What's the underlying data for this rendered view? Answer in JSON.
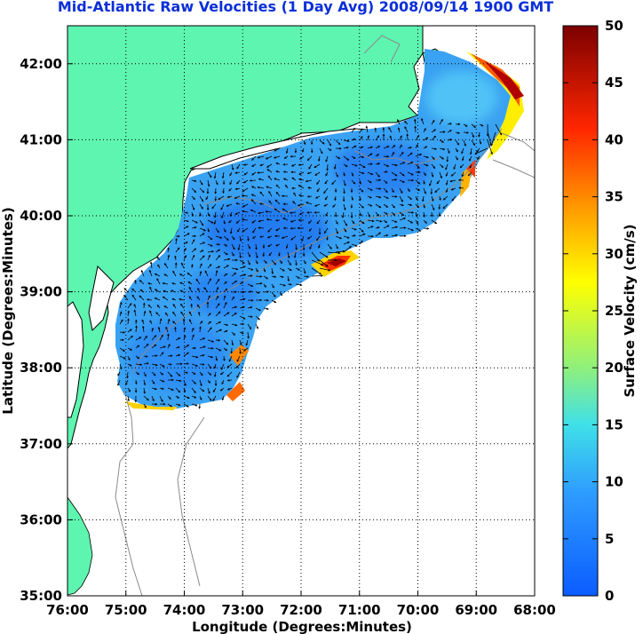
{
  "title": "Mid-Atlantic Raw Velocities (1 Day Avg) 2008/09/14 1900 GMT",
  "x_axis": {
    "label": "Longitude (Degrees:Minutes)",
    "ticks": [
      "76:00",
      "75:00",
      "74:00",
      "73:00",
      "72:00",
      "71:00",
      "70:00",
      "69:00",
      "68:00"
    ]
  },
  "y_axis": {
    "label": "Latitude (Degrees:Minutes)",
    "ticks": [
      "42:00",
      "41:00",
      "40:00",
      "39:00",
      "38:00",
      "37:00",
      "36:00",
      "35:00"
    ]
  },
  "colorbar": {
    "label": "Surface Velocity (cm/s)",
    "ticks": [
      "50",
      "45",
      "40",
      "35",
      "30",
      "25",
      "20",
      "15",
      "10",
      "5",
      "0"
    ],
    "range": [
      0,
      50
    ],
    "colors": [
      "#0b5cff",
      "#2e9cff",
      "#3fe0e8",
      "#8ff07c",
      "#ffff00",
      "#ff9a00",
      "#ff2600",
      "#7c0000"
    ]
  },
  "colors": {
    "land": "#5ef5b0",
    "field_base": "#3aa2f2",
    "title": "#0b2fd8"
  },
  "map": {
    "lon_range": [
      -76,
      -68
    ],
    "lat_range": [
      35,
      42.5
    ],
    "grid": true
  }
}
